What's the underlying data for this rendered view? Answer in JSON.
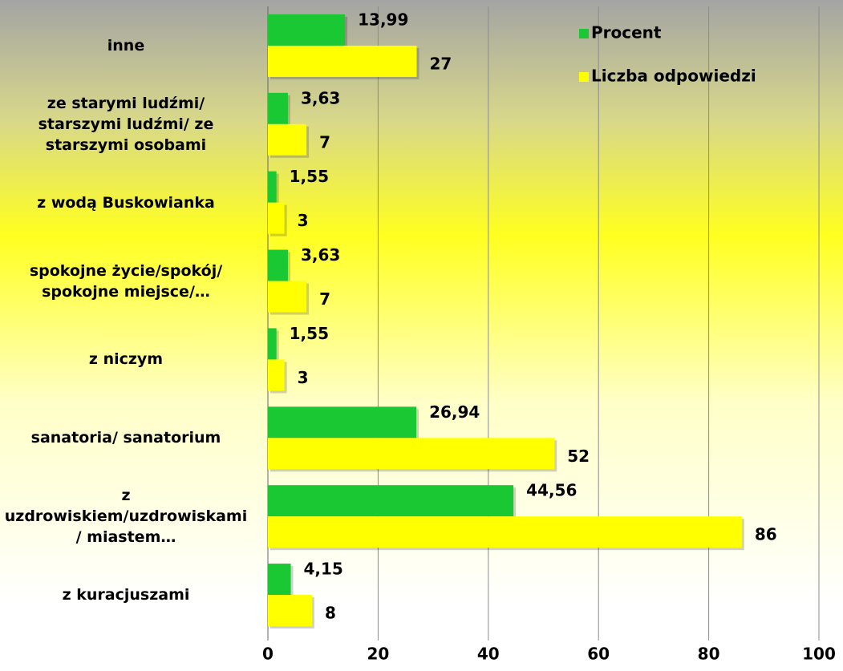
{
  "chart_data": {
    "type": "hbar",
    "categories": [
      "inne",
      "ze starymi ludźmi/ starszymi ludźmi/ ze starszymi osobami",
      "z wodą Buskowianka",
      "spokojne życie/spokój/ spokojne miejsce/…",
      "z niczym",
      "sanatoria/ sanatorium",
      "z uzdrowiskiem/uzdrowiskami/ miastem…",
      "z kuracjuszami"
    ],
    "series": [
      {
        "name": "Procent",
        "color": "#19c832",
        "values": [
          13.99,
          3.63,
          1.55,
          3.63,
          1.55,
          26.94,
          44.56,
          4.15
        ],
        "value_labels": [
          "13,99",
          "3,63",
          "1,55",
          "3,63",
          "1,55",
          "26,94",
          "44,56",
          "4,15"
        ]
      },
      {
        "name": "Liczba odpowiedzi",
        "color": "#ffff00",
        "values": [
          27,
          7,
          3,
          7,
          3,
          52,
          86,
          8
        ]
      }
    ],
    "xlim": [
      0,
      100
    ],
    "xticks": [
      0,
      20,
      40,
      60,
      80,
      100
    ],
    "grid": true,
    "legend": "top-right"
  }
}
